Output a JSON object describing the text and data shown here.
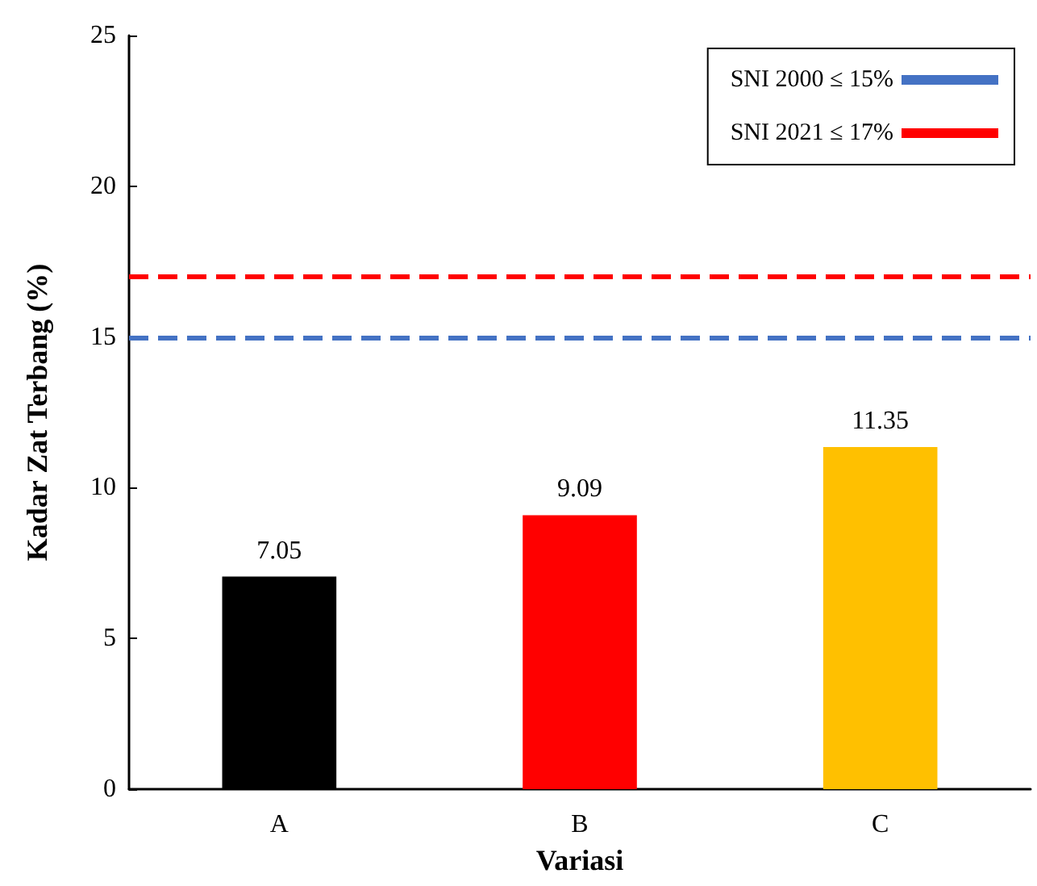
{
  "chart_data": {
    "type": "bar",
    "xlabel": "Variasi",
    "ylabel": "Kadar Zat Terbang (%)",
    "categories": [
      "A",
      "B",
      "C"
    ],
    "values": [
      7.05,
      9.09,
      11.35
    ],
    "colors": [
      "#000000",
      "#ff0000",
      "#ffc000"
    ],
    "data_labels": true,
    "ylim": [
      0,
      25
    ],
    "yticks": [
      0,
      5,
      10,
      15,
      20,
      25
    ],
    "grid": false,
    "legend": "top right",
    "ref_lines": [
      {
        "axis": "y",
        "value": 15,
        "label": "SNI 2000 ≤ 15%",
        "color": "#4472c4",
        "line_style": "dashed"
      },
      {
        "axis": "y",
        "value": 17,
        "label": "SNI 2021 ≤ 17%",
        "color": "#ff0000",
        "line_style": "dashed"
      }
    ]
  }
}
